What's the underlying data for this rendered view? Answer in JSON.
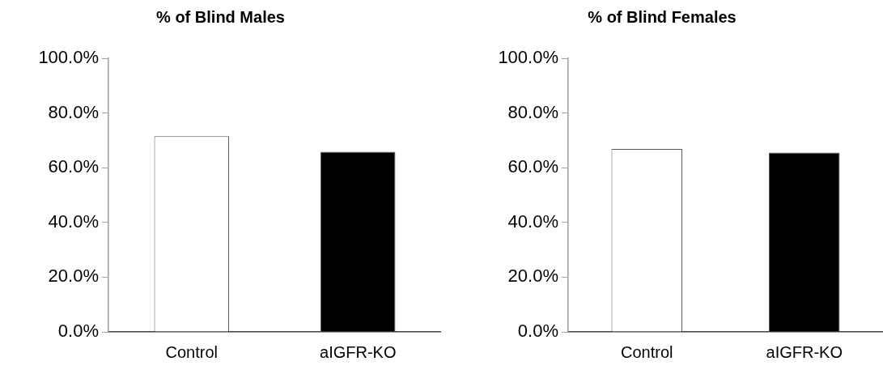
{
  "chart_data": [
    {
      "type": "bar",
      "title": "% of Blind Males",
      "categories": [
        "Control",
        "aIGFR-KO"
      ],
      "values": [
        71.5,
        65.8
      ],
      "colors": [
        "#ffffff",
        "#000000"
      ],
      "ylim": [
        0,
        100
      ],
      "yticks": [
        {
          "value": 0,
          "label": "0.0%"
        },
        {
          "value": 20,
          "label": "20.0%"
        },
        {
          "value": 40,
          "label": "40.0%"
        },
        {
          "value": 60,
          "label": "60.0%"
        },
        {
          "value": 80,
          "label": "80.0%"
        },
        {
          "value": 100,
          "label": "100.0%"
        }
      ],
      "grid": false
    },
    {
      "type": "bar",
      "title": "% of Blind Females",
      "categories": [
        "Control",
        "aIGFR-KO"
      ],
      "values": [
        66.9,
        65.5
      ],
      "colors": [
        "#ffffff",
        "#000000"
      ],
      "ylim": [
        0,
        100
      ],
      "yticks": [
        {
          "value": 0,
          "label": "0.0%"
        },
        {
          "value": 20,
          "label": "20.0%"
        },
        {
          "value": 40,
          "label": "40.0%"
        },
        {
          "value": 60,
          "label": "60.0%"
        },
        {
          "value": 80,
          "label": "80.0%"
        },
        {
          "value": 100,
          "label": "100.0%"
        }
      ],
      "grid": false
    }
  ]
}
